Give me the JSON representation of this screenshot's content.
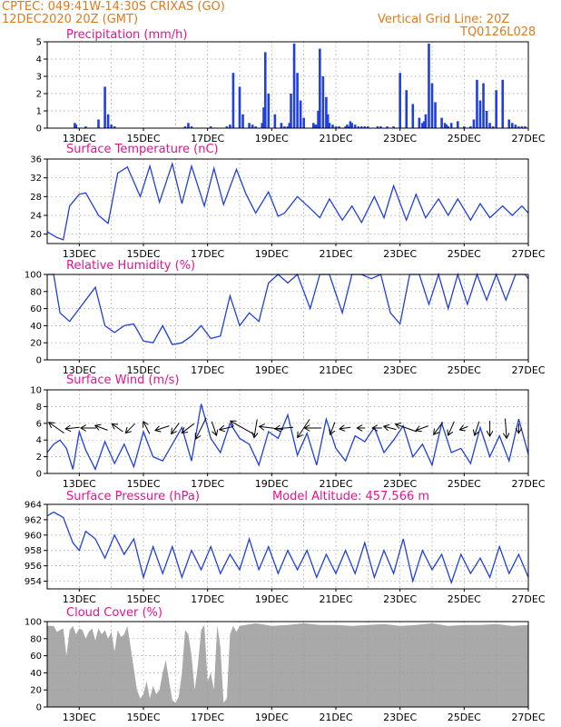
{
  "header": {
    "line1": "CPTEC:   049:41W-14:30S   CRIXAS (GO)",
    "line2": "12DEC2020 20Z (GMT)",
    "grid_label": "Vertical Grid Line: 20Z",
    "model_code": "TQ0126L028"
  },
  "colors": {
    "header": "#e07a1a",
    "title": "#e8128c",
    "line": "#1f3fe0",
    "bar": "#1f3fe0",
    "cloud": "#a9a9a9",
    "arrow": "#000000",
    "grid": "#999999"
  },
  "x_ticks": [
    "13DEC",
    "15DEC",
    "17DEC",
    "19DEC",
    "21DEC",
    "23DEC",
    "25DEC",
    "27DEC"
  ],
  "chart_data": [
    {
      "type": "bar",
      "title": "Precipitation (mm/h)",
      "ylim": [
        0,
        5
      ],
      "yticks": [
        0,
        1,
        2,
        3,
        4,
        5
      ],
      "series": [
        {
          "x": [
            12.86,
            12.9,
            13.2,
            13.6,
            13.8,
            13.9,
            14.0,
            14.1,
            16.3,
            16.4,
            16.5,
            17.1,
            17.6,
            17.7,
            17.8,
            18.0,
            18.1,
            18.3,
            18.4,
            18.5,
            18.7,
            18.75,
            18.8,
            18.9,
            19.1,
            19.3,
            19.4,
            19.5,
            19.55,
            19.6,
            19.7,
            19.8,
            19.9,
            20.0,
            20.3,
            20.35,
            20.4,
            20.45,
            20.5,
            20.6,
            20.7,
            20.75,
            20.8,
            20.9,
            21.0,
            21.1,
            21.3,
            21.35,
            21.4,
            21.45,
            21.5,
            21.6,
            21.7,
            21.8,
            21.9,
            22.0,
            22.3,
            22.4,
            22.6,
            22.8,
            23.0,
            23.2,
            23.4,
            23.6,
            23.7,
            23.75,
            23.8,
            23.9,
            24.0,
            24.1,
            24.3,
            24.4,
            24.45,
            24.5,
            24.6,
            24.8,
            25.0,
            25.2,
            25.3,
            25.4,
            25.5,
            25.6,
            25.7,
            25.8,
            25.9,
            26.0,
            26.2,
            26.4,
            26.5,
            26.6,
            26.7,
            26.8,
            26.9
          ],
          "values": [
            0.3,
            0.2,
            0.1,
            0.5,
            2.4,
            0.8,
            0.2,
            0.1,
            0.1,
            0.3,
            0.1,
            0.1,
            0.1,
            0.2,
            3.2,
            2.4,
            0.8,
            0.3,
            0.2,
            0.1,
            0.3,
            1.2,
            4.4,
            2.0,
            0.8,
            0.3,
            0.1,
            0.1,
            0.3,
            2.0,
            4.9,
            3.2,
            1.6,
            0.6,
            0.3,
            0.2,
            0.2,
            1.0,
            4.6,
            3.0,
            1.8,
            0.8,
            0.3,
            0.2,
            0.1,
            0.1,
            0.1,
            0.2,
            0.1,
            0.4,
            0.3,
            0.2,
            0.1,
            0.1,
            0.1,
            0.1,
            0.1,
            0.1,
            0.1,
            0.1,
            3.2,
            2.2,
            1.4,
            0.6,
            0.3,
            0.4,
            0.8,
            4.9,
            2.6,
            1.5,
            0.6,
            0.3,
            0.2,
            0.1,
            0.3,
            0.4,
            0.1,
            0.1,
            0.5,
            2.8,
            1.6,
            2.6,
            1.0,
            0.3,
            0.1,
            2.2,
            2.8,
            0.5,
            0.3,
            0.2,
            0.1,
            0.1,
            0.1
          ]
        }
      ]
    },
    {
      "type": "line",
      "title": "Surface Temperature (nC)",
      "ylim": [
        18,
        36
      ],
      "yticks": [
        20,
        24,
        28,
        32,
        36
      ],
      "series": [
        {
          "x": [
            12.0,
            12.3,
            12.5,
            12.7,
            13.0,
            13.2,
            13.6,
            13.9,
            14.2,
            14.5,
            14.9,
            15.2,
            15.5,
            15.9,
            16.2,
            16.5,
            16.9,
            17.2,
            17.5,
            17.9,
            18.2,
            18.5,
            18.9,
            19.2,
            19.4,
            19.8,
            20.2,
            20.5,
            20.8,
            21.2,
            21.5,
            21.8,
            22.2,
            22.5,
            22.8,
            23.2,
            23.5,
            23.8,
            24.2,
            24.5,
            24.8,
            25.2,
            25.5,
            25.8,
            26.2,
            26.5,
            26.8,
            27.0
          ],
          "values": [
            20.5,
            19.3,
            18.8,
            26.0,
            28.5,
            28.8,
            24.0,
            22.3,
            33.0,
            34.3,
            28.0,
            34.5,
            26.8,
            35.0,
            26.5,
            34.5,
            26.0,
            34.0,
            26.3,
            33.8,
            28.5,
            24.5,
            29.0,
            23.8,
            24.5,
            28.0,
            25.5,
            23.5,
            27.5,
            23.0,
            26.0,
            22.5,
            28.0,
            23.5,
            30.3,
            23.0,
            28.5,
            23.5,
            27.5,
            24.0,
            27.5,
            23.0,
            26.5,
            23.5,
            26.0,
            24.0,
            26.0,
            24.5
          ]
        }
      ]
    },
    {
      "type": "line",
      "title": "Relative Humidity (%)",
      "ylim": [
        0,
        100
      ],
      "yticks": [
        0,
        20,
        40,
        60,
        80,
        100
      ],
      "series": [
        {
          "x": [
            12.0,
            12.2,
            12.4,
            12.7,
            13.0,
            13.2,
            13.5,
            13.8,
            14.1,
            14.4,
            14.7,
            15.0,
            15.3,
            15.6,
            15.9,
            16.2,
            16.5,
            16.8,
            17.1,
            17.4,
            17.7,
            18.0,
            18.3,
            18.6,
            18.9,
            19.2,
            19.5,
            19.8,
            20.2,
            20.5,
            20.8,
            21.2,
            21.5,
            21.8,
            22.1,
            22.4,
            22.7,
            23.0,
            23.3,
            23.6,
            23.9,
            24.2,
            24.5,
            24.8,
            25.1,
            25.4,
            25.7,
            26.0,
            26.3,
            26.6,
            26.9,
            27.0
          ],
          "values": [
            100,
            100,
            55,
            45,
            60,
            70,
            85,
            40,
            32,
            40,
            42,
            22,
            20,
            40,
            18,
            20,
            28,
            40,
            25,
            28,
            75,
            40,
            55,
            45,
            90,
            100,
            90,
            100,
            60,
            100,
            100,
            55,
            100,
            100,
            95,
            100,
            55,
            42,
            100,
            100,
            65,
            100,
            60,
            100,
            65,
            100,
            70,
            100,
            70,
            100,
            100,
            95
          ]
        }
      ]
    },
    {
      "type": "line",
      "title": "Surface Wind (m/s)",
      "ylim": [
        0,
        10
      ],
      "yticks": [
        0,
        2,
        4,
        6,
        8,
        10
      ],
      "series": [
        {
          "x": [
            12.0,
            12.2,
            12.4,
            12.6,
            12.8,
            13.0,
            13.2,
            13.5,
            13.8,
            14.1,
            14.4,
            14.7,
            15.0,
            15.3,
            15.6,
            15.9,
            16.2,
            16.5,
            16.8,
            17.1,
            17.4,
            17.7,
            18.0,
            18.3,
            18.6,
            18.9,
            19.2,
            19.5,
            19.8,
            20.1,
            20.4,
            20.7,
            21.0,
            21.3,
            21.6,
            21.9,
            22.2,
            22.5,
            22.8,
            23.1,
            23.4,
            23.7,
            24.0,
            24.3,
            24.6,
            24.9,
            25.2,
            25.5,
            25.8,
            26.1,
            26.4,
            26.7,
            27.0
          ],
          "values": [
            2.5,
            3.5,
            4.0,
            3.0,
            0.5,
            5.0,
            2.8,
            0.5,
            3.8,
            1.2,
            3.5,
            0.8,
            5.0,
            2.0,
            1.5,
            3.5,
            5.5,
            1.5,
            8.3,
            4.2,
            2.5,
            6.0,
            4.2,
            3.5,
            1.0,
            5.0,
            4.2,
            7.0,
            2.2,
            4.8,
            1.0,
            6.5,
            3.0,
            1.5,
            4.5,
            3.8,
            5.5,
            2.5,
            4.0,
            5.7,
            2.0,
            3.5,
            1.0,
            6.0,
            2.5,
            3.0,
            1.2,
            5.5,
            2.0,
            4.5,
            1.5,
            6.5,
            2.3
          ]
        }
      ]
    },
    {
      "type": "line",
      "title": "Surface Pressure (hPa)",
      "annotation": "Model Altitude: 457.566  m",
      "ylim": [
        953,
        964
      ],
      "yticks": [
        954,
        956,
        958,
        960,
        962,
        964
      ],
      "series": [
        {
          "x": [
            12.0,
            12.2,
            12.5,
            12.8,
            13.0,
            13.2,
            13.5,
            13.8,
            14.1,
            14.4,
            14.7,
            15.0,
            15.3,
            15.6,
            15.9,
            16.2,
            16.5,
            16.8,
            17.1,
            17.4,
            17.7,
            18.0,
            18.3,
            18.6,
            18.9,
            19.2,
            19.5,
            19.8,
            20.1,
            20.4,
            20.7,
            21.0,
            21.3,
            21.6,
            21.9,
            22.2,
            22.5,
            22.8,
            23.1,
            23.4,
            23.7,
            24.0,
            24.3,
            24.6,
            24.9,
            25.2,
            25.5,
            25.8,
            26.1,
            26.4,
            26.7,
            27.0
          ],
          "values": [
            962.5,
            963.0,
            962.3,
            959.0,
            958.0,
            960.5,
            959.5,
            957.0,
            960.0,
            957.5,
            959.5,
            954.5,
            958.5,
            955.0,
            958.5,
            954.5,
            958.0,
            955.5,
            958.5,
            955.0,
            957.5,
            955.5,
            959.5,
            955.5,
            958.5,
            955.0,
            958.0,
            955.5,
            958.0,
            954.5,
            957.5,
            955.0,
            958.0,
            955.0,
            959.0,
            954.5,
            958.0,
            955.0,
            959.5,
            954.0,
            958.0,
            955.5,
            957.5,
            953.8,
            957.5,
            955.0,
            957.0,
            954.5,
            958.5,
            955.0,
            957.5,
            954.5
          ]
        }
      ]
    },
    {
      "type": "area",
      "title": "Cloud Cover (%)",
      "ylim": [
        0,
        100
      ],
      "yticks": [
        0,
        20,
        40,
        60,
        80,
        100
      ],
      "series": [
        {
          "x": [
            12.0,
            12.1,
            12.2,
            12.3,
            12.4,
            12.5,
            12.6,
            12.7,
            12.8,
            12.9,
            13.0,
            13.1,
            13.2,
            13.3,
            13.4,
            13.5,
            13.6,
            13.7,
            13.8,
            13.9,
            14.0,
            14.1,
            14.2,
            14.3,
            14.4,
            14.5,
            14.6,
            14.7,
            14.8,
            14.9,
            15.0,
            15.1,
            15.2,
            15.3,
            15.4,
            15.5,
            15.6,
            15.7,
            15.8,
            15.9,
            16.0,
            16.1,
            16.2,
            16.3,
            16.4,
            16.5,
            16.6,
            16.7,
            16.8,
            16.9,
            17.0,
            17.1,
            17.2,
            17.3,
            17.4,
            17.5,
            17.6,
            17.7,
            17.8,
            17.9,
            18.0,
            18.5,
            19.0,
            19.5,
            20.0,
            20.5,
            21.0,
            21.5,
            22.0,
            22.5,
            23.0,
            23.5,
            24.0,
            24.5,
            25.0,
            25.5,
            26.0,
            26.5,
            27.0
          ],
          "values": [
            95,
            95,
            95,
            88,
            90,
            92,
            60,
            90,
            95,
            85,
            92,
            90,
            80,
            88,
            92,
            78,
            92,
            85,
            90,
            80,
            88,
            65,
            90,
            82,
            85,
            95,
            70,
            45,
            20,
            10,
            15,
            30,
            10,
            25,
            15,
            20,
            40,
            55,
            30,
            8,
            5,
            12,
            40,
            90,
            85,
            60,
            20,
            50,
            90,
            96,
            30,
            40,
            20,
            96,
            70,
            5,
            10,
            85,
            95,
            88,
            95,
            98,
            95,
            96,
            98,
            96,
            96,
            95,
            96,
            97,
            95,
            96,
            98,
            95,
            96,
            96,
            97,
            95,
            96
          ]
        }
      ]
    }
  ],
  "wind_arrows": [
    {
      "x": 12.3,
      "u": -1.0,
      "v": 0.7
    },
    {
      "x": 12.8,
      "u": -0.9,
      "v": -0.1
    },
    {
      "x": 13.3,
      "u": -1.0,
      "v": 0.0
    },
    {
      "x": 13.7,
      "u": -0.8,
      "v": 0.3
    },
    {
      "x": 14.2,
      "u": -0.7,
      "v": 0.5
    },
    {
      "x": 14.6,
      "u": -0.6,
      "v": -0.6
    },
    {
      "x": 15.1,
      "u": -0.4,
      "v": 0.8
    },
    {
      "x": 15.6,
      "u": -0.9,
      "v": -0.3
    },
    {
      "x": 16.0,
      "u": -0.5,
      "v": -0.7
    },
    {
      "x": 16.4,
      "u": -0.8,
      "v": -0.6
    },
    {
      "x": 16.8,
      "u": -0.7,
      "v": -1.4
    },
    {
      "x": 17.2,
      "u": 0.3,
      "v": -0.9
    },
    {
      "x": 17.6,
      "u": -0.9,
      "v": -0.2
    },
    {
      "x": 18.1,
      "u": -1.6,
      "v": 0.9
    },
    {
      "x": 18.5,
      "u": -0.2,
      "v": -1.2
    },
    {
      "x": 19.0,
      "u": -1.6,
      "v": 0.2
    },
    {
      "x": 19.4,
      "u": -1.2,
      "v": -0.1
    },
    {
      "x": 20.0,
      "u": -0.8,
      "v": -1.2
    },
    {
      "x": 20.3,
      "u": -1.1,
      "v": 0.0
    },
    {
      "x": 20.9,
      "u": -0.3,
      "v": -0.8
    },
    {
      "x": 21.3,
      "u": -0.7,
      "v": -0.1
    },
    {
      "x": 21.8,
      "u": -0.5,
      "v": 0.0
    },
    {
      "x": 22.3,
      "u": -0.6,
      "v": 0.0
    },
    {
      "x": 22.7,
      "u": -0.8,
      "v": 0.2
    },
    {
      "x": 23.2,
      "u": -1.4,
      "v": 0.5
    },
    {
      "x": 23.7,
      "u": -0.8,
      "v": -0.3
    },
    {
      "x": 24.2,
      "u": -0.6,
      "v": -0.8
    },
    {
      "x": 24.6,
      "u": -0.4,
      "v": -0.9
    },
    {
      "x": 25.0,
      "u": -0.5,
      "v": -0.2
    },
    {
      "x": 25.4,
      "u": -0.3,
      "v": -0.9
    },
    {
      "x": 25.8,
      "u": 0.0,
      "v": -1.0
    },
    {
      "x": 26.3,
      "u": 0.1,
      "v": -1.3
    },
    {
      "x": 26.7,
      "u": 0.0,
      "v": -0.6
    }
  ]
}
